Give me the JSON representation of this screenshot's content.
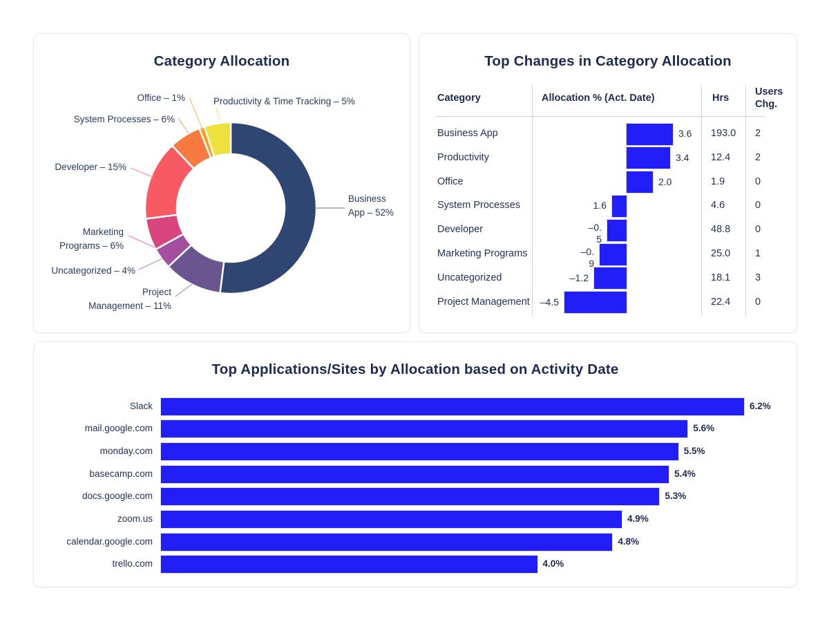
{
  "colors": {
    "accent_blue": "#221ef8",
    "title_navy": "#1c2b52",
    "text_navy": "#22325a",
    "grid_line": "#ccd5e3"
  },
  "chart_data": [
    {
      "type": "pie",
      "donut": true,
      "title": "Category Allocation",
      "labels": [
        "Business App",
        "Project Management",
        "Uncategorized",
        "Marketing Programs",
        "Developer",
        "System Processes",
        "Office",
        "Productivity & Time Tracking"
      ],
      "values": [
        52,
        11,
        4,
        6,
        15,
        6,
        1,
        5
      ],
      "unit": "%",
      "colors": [
        "#2f4672",
        "#6a5590",
        "#a44ea0",
        "#d8447c",
        "#f85a64",
        "#f77b40",
        "#ff9914",
        "#eee13e"
      ],
      "callout_labels": [
        [
          "Business",
          "App – 52%"
        ],
        [
          "Project",
          "Management – 11%"
        ],
        [
          "Uncategorized – 4%"
        ],
        [
          "Marketing",
          "Programs – 6%"
        ],
        [
          "Developer – 15%"
        ],
        [
          "System Processes – 6%"
        ],
        [
          "Office – 1%"
        ],
        [
          "Productivity & Time Tracking – 5%"
        ]
      ]
    },
    {
      "type": "bar",
      "orientation": "horizontal",
      "title": "Top Changes in Category Allocation",
      "columns": [
        "Category",
        "Allocation % (Act. Date)",
        "Hrs",
        "Users Chg."
      ],
      "users_col_lines": [
        "Users",
        "Chg."
      ],
      "rows": [
        {
          "category": "Business App",
          "change": 3.6,
          "change_label_lines": [
            "3.6"
          ],
          "bar_side": "right",
          "bar_len": 67,
          "hrs": "193.0",
          "users_chg": "2"
        },
        {
          "category": "Productivity",
          "change": 3.4,
          "change_label_lines": [
            "3.4"
          ],
          "bar_side": "right",
          "bar_len": 63,
          "hrs": "12.4",
          "users_chg": "2"
        },
        {
          "category": "Office",
          "change": 2.0,
          "change_label_lines": [
            "2.0"
          ],
          "bar_side": "right",
          "bar_len": 38,
          "hrs": "1.9",
          "users_chg": "0"
        },
        {
          "category": "System Processes",
          "change": 1.6,
          "change_label_lines": [
            "1.6"
          ],
          "bar_side": "left",
          "bar_len": 21,
          "hrs": "4.6",
          "users_chg": "0"
        },
        {
          "category": "Developer",
          "change": -0.5,
          "change_label_lines": [
            "–0.",
            "5"
          ],
          "bar_side": "left",
          "bar_len": 28,
          "hrs": "48.8",
          "users_chg": "0"
        },
        {
          "category": "Marketing Programs",
          "change": -0.9,
          "change_label_lines": [
            "–0.",
            "9"
          ],
          "bar_side": "left",
          "bar_len": 39,
          "hrs": "25.0",
          "users_chg": "1"
        },
        {
          "category": "Uncategorized",
          "change": -1.2,
          "change_label_lines": [
            "–1.2"
          ],
          "bar_side": "left",
          "bar_len": 47,
          "hrs": "18.1",
          "users_chg": "3"
        },
        {
          "category": "Project Management",
          "change": -4.5,
          "change_label_lines": [
            "–4.5"
          ],
          "bar_side": "left",
          "bar_len": 90,
          "hrs": "22.4",
          "users_chg": "0"
        }
      ]
    },
    {
      "type": "bar",
      "orientation": "horizontal",
      "title": "Top Applications/Sites by Allocation based on Activity Date",
      "categories": [
        "Slack",
        "mail.google.com",
        "monday.com",
        "basecamp.com",
        "docs.google.com",
        "zoom.us",
        "calendar.google.com",
        "trello.com"
      ],
      "values": [
        6.2,
        5.6,
        5.5,
        5.4,
        5.3,
        4.9,
        4.8,
        4.0
      ],
      "value_labels": [
        "6.2%",
        "5.6%",
        "5.5%",
        "5.4%",
        "5.3%",
        "4.9%",
        "4.8%",
        "4.0%"
      ],
      "xlim": [
        0,
        6.2
      ]
    }
  ]
}
